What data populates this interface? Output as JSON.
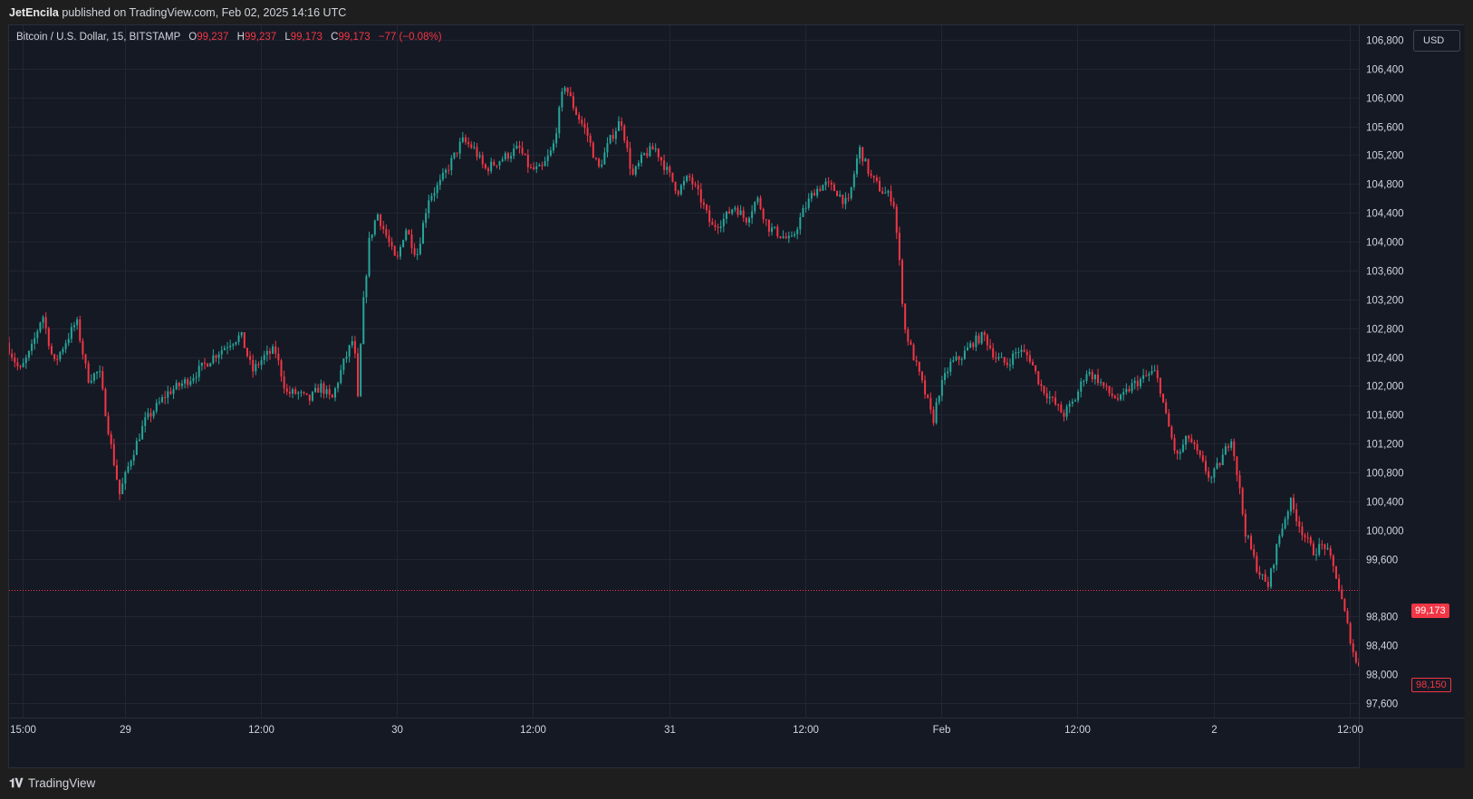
{
  "header": {
    "author": "JetEncila",
    "published_text": "published on TradingView.com, Feb 02, 2025 14:16 UTC"
  },
  "legend": {
    "symbol": "Bitcoin / U.S. Dollar, 15, BITSTAMP",
    "o_label": "O",
    "o_value": "99,237",
    "h_label": "H",
    "h_value": "99,237",
    "l_label": "L",
    "l_value": "99,173",
    "c_label": "C",
    "c_value": "99,173",
    "change": "−77 (−0.08%)"
  },
  "currency_button": "USD",
  "last_price_label": "99,173",
  "low_price_label": "98,150",
  "footer": {
    "brand": "TradingView",
    "brand_icon": "tradingview-logo-icon"
  },
  "colors": {
    "background": "#151924",
    "up": "#26a69a",
    "down": "#f23645",
    "grid": "#232632",
    "text": "#d1d4dc"
  },
  "chart_data": {
    "type": "candlestick",
    "symbol": "BTCUSD",
    "exchange": "BITSTAMP",
    "interval": "15",
    "ylim": [
      97400,
      107000
    ],
    "y_ticks": [
      97600,
      98000,
      98400,
      98800,
      99600,
      100000,
      100400,
      100800,
      101200,
      101600,
      102000,
      102400,
      102800,
      103200,
      103600,
      104000,
      104400,
      104800,
      105200,
      105600,
      106000,
      106400,
      106800
    ],
    "y_tick_labels": [
      "97,600",
      "98,000",
      "98,400",
      "98,800",
      "99,600",
      "100,000",
      "100,400",
      "100,800",
      "101,200",
      "101,600",
      "102,000",
      "102,400",
      "102,800",
      "103,200",
      "103,600",
      "104,000",
      "104,400",
      "104,800",
      "105,200",
      "105,600",
      "106,000",
      "106,400",
      "106,800"
    ],
    "x_ticks": [
      "15:00",
      "29",
      "12:00",
      "30",
      "12:00",
      "31",
      "12:00",
      "Feb",
      "12:00",
      "2",
      "12:00"
    ],
    "x_tick_hours": [
      0,
      9,
      21,
      33,
      45,
      57,
      69,
      81,
      93,
      105,
      117
    ],
    "time_range_hours": [
      -1.2,
      117.8
    ],
    "last_price": 99173,
    "low_marker": 98150,
    "grid": true,
    "price_path": [
      [
        -1.2,
        102600
      ],
      [
        0,
        102200
      ],
      [
        1,
        102500
      ],
      [
        2,
        103000
      ],
      [
        3,
        102300
      ],
      [
        4,
        102600
      ],
      [
        5,
        102900
      ],
      [
        6,
        102100
      ],
      [
        7,
        102200
      ],
      [
        8,
        101200
      ],
      [
        8.8,
        100500
      ],
      [
        9.8,
        101000
      ],
      [
        11,
        101500
      ],
      [
        13,
        101900
      ],
      [
        15,
        102100
      ],
      [
        17,
        102400
      ],
      [
        18.5,
        102600
      ],
      [
        19.5,
        102700
      ],
      [
        20.5,
        102200
      ],
      [
        21.5,
        102400
      ],
      [
        22.5,
        102500
      ],
      [
        23.5,
        101900
      ],
      [
        24.5,
        101900
      ],
      [
        25.5,
        101800
      ],
      [
        26.5,
        102000
      ],
      [
        27.5,
        101800
      ],
      [
        28.5,
        102300
      ],
      [
        29.5,
        102700
      ],
      [
        29.7,
        101500
      ],
      [
        30.2,
        103000
      ],
      [
        30.8,
        104000
      ],
      [
        31.5,
        104400
      ],
      [
        32.5,
        104000
      ],
      [
        33.2,
        103700
      ],
      [
        34,
        104200
      ],
      [
        35,
        103800
      ],
      [
        36,
        104600
      ],
      [
        37,
        104800
      ],
      [
        38,
        105100
      ],
      [
        39,
        105400
      ],
      [
        40,
        105300
      ],
      [
        41,
        105000
      ],
      [
        42,
        105100
      ],
      [
        43,
        105200
      ],
      [
        44,
        105300
      ],
      [
        45,
        105000
      ],
      [
        46,
        105000
      ],
      [
        47,
        105300
      ],
      [
        48,
        106200
      ],
      [
        49,
        105800
      ],
      [
        50,
        105500
      ],
      [
        51,
        105000
      ],
      [
        52,
        105400
      ],
      [
        53,
        105700
      ],
      [
        54,
        104900
      ],
      [
        55,
        105200
      ],
      [
        56,
        105300
      ],
      [
        57,
        105000
      ],
      [
        58,
        104700
      ],
      [
        59,
        104900
      ],
      [
        60,
        104600
      ],
      [
        61,
        104200
      ],
      [
        62,
        104300
      ],
      [
        63,
        104500
      ],
      [
        64,
        104300
      ],
      [
        65,
        104600
      ],
      [
        66,
        104200
      ],
      [
        67,
        104100
      ],
      [
        68,
        104000
      ],
      [
        69,
        104400
      ],
      [
        70,
        104700
      ],
      [
        71,
        104800
      ],
      [
        72,
        104700
      ],
      [
        73,
        104500
      ],
      [
        74,
        105300
      ],
      [
        75,
        104900
      ],
      [
        76,
        104700
      ],
      [
        77,
        104600
      ],
      [
        77.5,
        103800
      ],
      [
        78,
        102800
      ],
      [
        79,
        102300
      ],
      [
        80,
        101800
      ],
      [
        80.5,
        101500
      ],
      [
        81,
        101900
      ],
      [
        82,
        102300
      ],
      [
        83,
        102400
      ],
      [
        84,
        102600
      ],
      [
        85,
        102700
      ],
      [
        86,
        102400
      ],
      [
        87,
        102300
      ],
      [
        88,
        102500
      ],
      [
        89,
        102400
      ],
      [
        90,
        102000
      ],
      [
        91,
        101800
      ],
      [
        92,
        101600
      ],
      [
        93,
        101800
      ],
      [
        94,
        102200
      ],
      [
        95,
        102100
      ],
      [
        96,
        101900
      ],
      [
        97,
        101800
      ],
      [
        98,
        102000
      ],
      [
        99,
        102100
      ],
      [
        100,
        102200
      ],
      [
        100.5,
        102000
      ],
      [
        101,
        101600
      ],
      [
        102,
        101000
      ],
      [
        103,
        101300
      ],
      [
        104,
        101000
      ],
      [
        105,
        100700
      ],
      [
        106,
        101000
      ],
      [
        106.8,
        101300
      ],
      [
        107.5,
        100600
      ],
      [
        108,
        100000
      ],
      [
        109,
        99500
      ],
      [
        110,
        99200
      ],
      [
        111,
        99900
      ],
      [
        112,
        100400
      ],
      [
        113,
        100000
      ],
      [
        114,
        99700
      ],
      [
        115,
        99800
      ],
      [
        116,
        99400
      ],
      [
        117,
        98700
      ],
      [
        117.8,
        98150
      ]
    ]
  }
}
